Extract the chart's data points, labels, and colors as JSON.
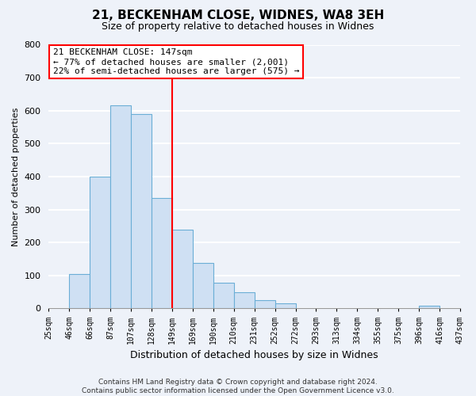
{
  "title": "21, BECKENHAM CLOSE, WIDNES, WA8 3EH",
  "subtitle": "Size of property relative to detached houses in Widnes",
  "xlabel": "Distribution of detached houses by size in Widnes",
  "ylabel": "Number of detached properties",
  "footer_line1": "Contains HM Land Registry data © Crown copyright and database right 2024.",
  "footer_line2": "Contains public sector information licensed under the Open Government Licence v3.0.",
  "bin_labels": [
    "25sqm",
    "46sqm",
    "66sqm",
    "87sqm",
    "107sqm",
    "128sqm",
    "149sqm",
    "169sqm",
    "190sqm",
    "210sqm",
    "231sqm",
    "252sqm",
    "272sqm",
    "293sqm",
    "313sqm",
    "334sqm",
    "355sqm",
    "375sqm",
    "396sqm",
    "416sqm",
    "437sqm"
  ],
  "bar_values": [
    0,
    105,
    400,
    615,
    590,
    335,
    238,
    137,
    77,
    50,
    25,
    15,
    0,
    0,
    0,
    0,
    0,
    0,
    8,
    0
  ],
  "bar_color": "#cfe0f3",
  "bar_edge_color": "#6baed6",
  "vline_x_label_index": 6,
  "vline_color": "red",
  "annotation_text": "21 BECKENHAM CLOSE: 147sqm\n← 77% of detached houses are smaller (2,001)\n22% of semi-detached houses are larger (575) →",
  "annotation_box_color": "white",
  "annotation_box_edge_color": "red",
  "ylim": [
    0,
    800
  ],
  "yticks": [
    0,
    100,
    200,
    300,
    400,
    500,
    600,
    700,
    800
  ],
  "background_color": "#eef2f9",
  "grid_color": "white",
  "title_fontsize": 11,
  "subtitle_fontsize": 9,
  "ylabel_fontsize": 8,
  "xlabel_fontsize": 9,
  "tick_fontsize": 7,
  "ytick_fontsize": 8,
  "annotation_fontsize": 8,
  "footer_fontsize": 6.5
}
